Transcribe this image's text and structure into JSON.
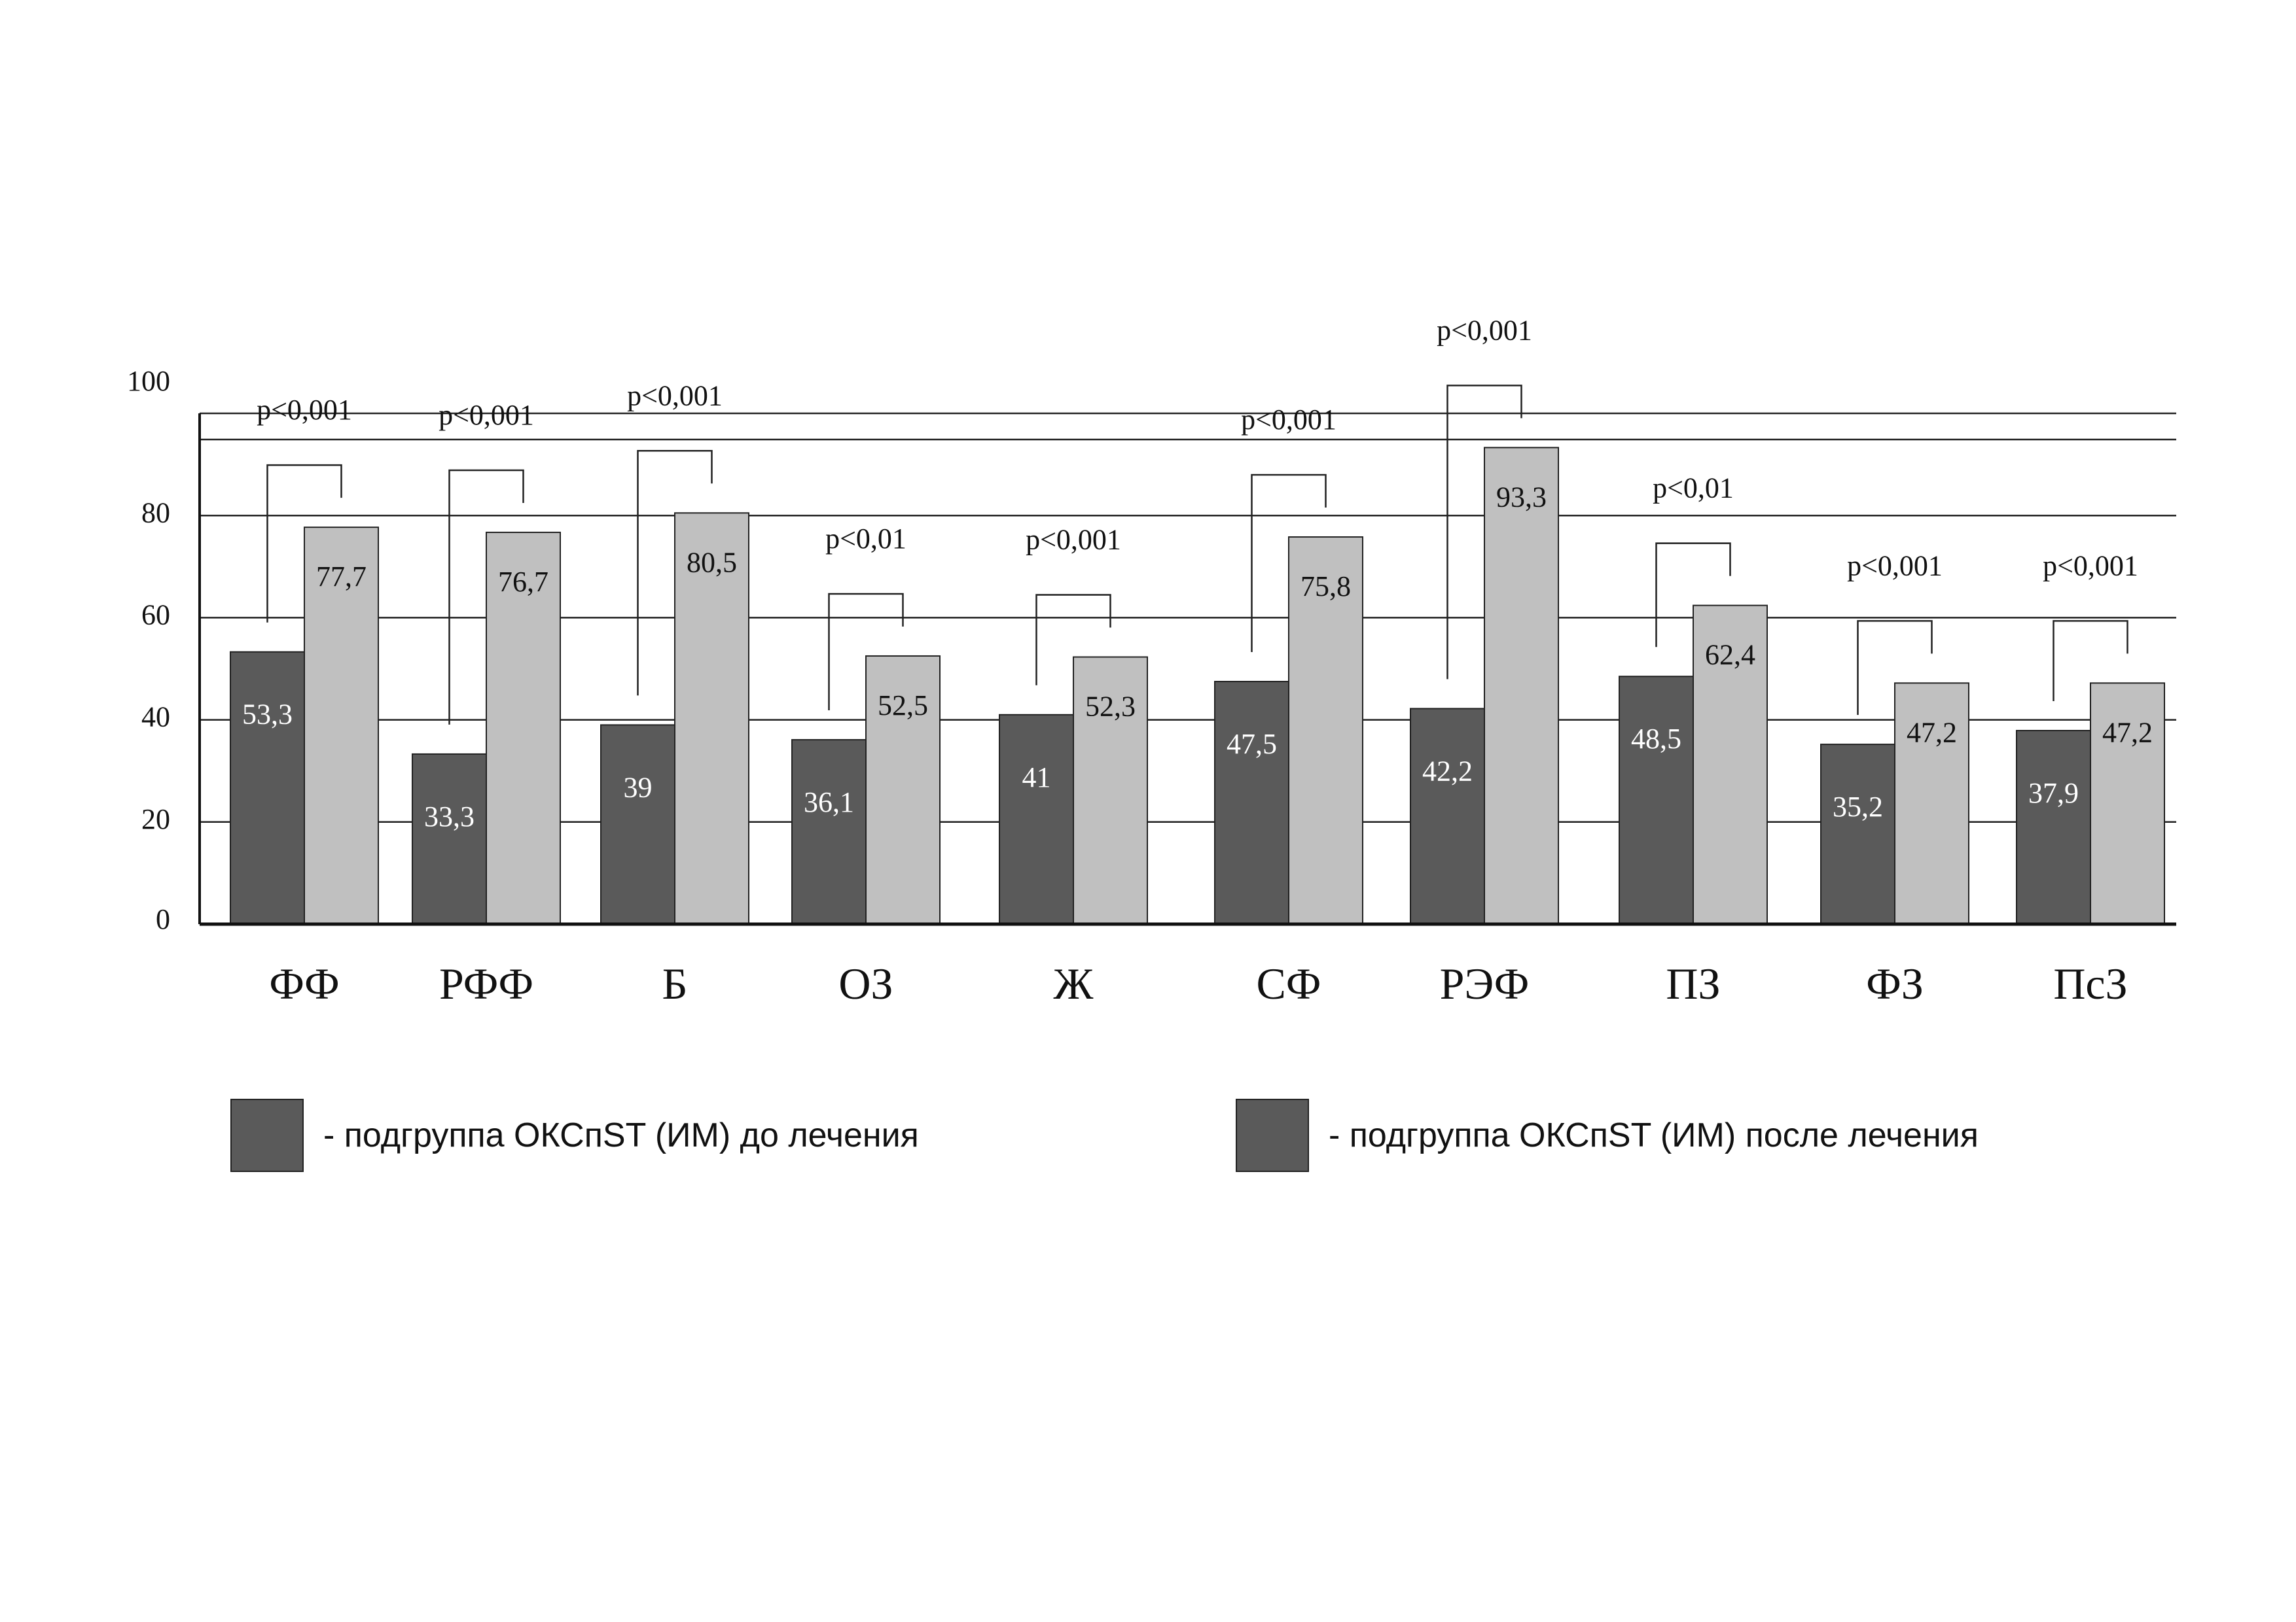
{
  "chart_data": {
    "type": "bar",
    "title": "",
    "xlabel": "",
    "ylabel": "",
    "ylim": [
      0,
      100
    ],
    "yticks": [
      0,
      20,
      40,
      60,
      80,
      100
    ],
    "grid": true,
    "categories": [
      "ФФ",
      "РФФ",
      "Б",
      "ОЗ",
      "Ж",
      "СФ",
      "РЭФ",
      "ПЗ",
      "ФЗ",
      "ПсЗ"
    ],
    "series": [
      {
        "name": "- подгруппа ОКСпST (ИМ) до лечения",
        "color": "#5a5a5a",
        "values": [
          53.3,
          33.3,
          39,
          36.1,
          41,
          47.5,
          42.2,
          48.5,
          35.2,
          37.9
        ],
        "value_labels": [
          "53,3",
          "33,3",
          "39",
          "36,1",
          "41",
          "47,5",
          "42,2",
          "48,5",
          "35,2",
          "37,9"
        ]
      },
      {
        "name": "- подгруппа ОКСпST (ИМ) после лечения",
        "color": "#c0c0c0",
        "values": [
          77.7,
          76.7,
          80.5,
          52.5,
          52.3,
          75.8,
          93.3,
          62.4,
          47.2,
          47.2
        ],
        "value_labels": [
          "77,7",
          "76,7",
          "80,5",
          "52,5",
          "52,3",
          "75,8",
          "93,3",
          "62,4",
          "47,2",
          "47,2"
        ]
      }
    ],
    "annotations": [
      "p<0,001",
      "p<0,001",
      "p<0,001",
      "p<0,01",
      "p<0,001",
      "p<0,001",
      "p<0,001",
      "p<0,01",
      "p<0,001",
      "p<0,001"
    ],
    "legend": {
      "placement": "bottom",
      "items": [
        {
          "label": "- подгруппа ОКСпST (ИМ) до лечения",
          "color": "#5a5a5a"
        },
        {
          "label": "- подгруппа ОКСпST (ИМ) после лечения",
          "color": "#5a5a5a"
        }
      ]
    }
  }
}
